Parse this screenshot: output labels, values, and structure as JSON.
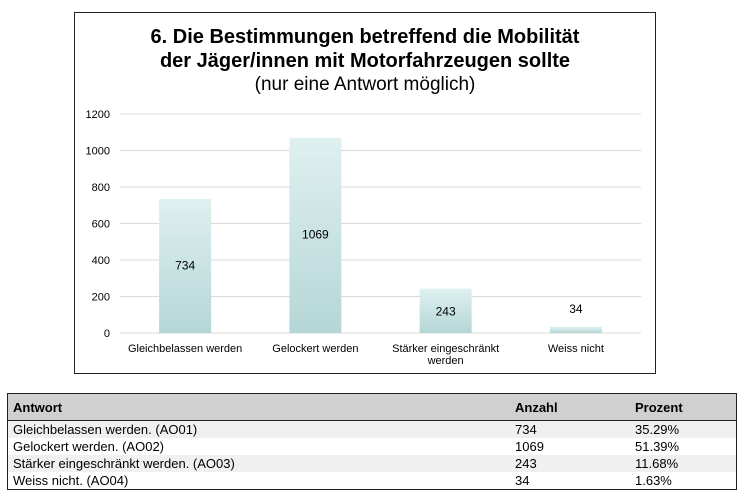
{
  "chart_data": {
    "type": "bar",
    "title_line1": "6. Die Bestimmungen betreffend die Mobilität",
    "title_line2": "der Jäger/innen mit Motorfahrzeugen sollte",
    "subtitle": "(nur eine Antwort möglich)",
    "categories": [
      "Gleichbelassen werden",
      "Gelockert werden",
      "Stärker eingeschränkt werden",
      "Weiss nicht"
    ],
    "category_lines": [
      [
        "Gleichbelassen werden"
      ],
      [
        "Gelockert werden"
      ],
      [
        "Stärker eingeschränkt",
        "werden"
      ],
      [
        "Weiss nicht"
      ]
    ],
    "values": [
      734,
      1069,
      243,
      34
    ],
    "ylim": [
      0,
      1200
    ],
    "yticks": [
      0,
      200,
      400,
      600,
      800,
      1000,
      1200
    ],
    "grid": true,
    "bar_color_top": "#dff0f0",
    "bar_color_bottom": "#b5d6d6",
    "grid_color": "#d9d9d9"
  },
  "table": {
    "headers": [
      "Antwort",
      "Anzahl",
      "Prozent"
    ],
    "rows": [
      [
        "Gleichbelassen werden. (AO01)",
        "734",
        "35.29%"
      ],
      [
        "Gelockert werden. (AO02)",
        "1069",
        "51.39%"
      ],
      [
        "Stärker eingeschränkt werden. (AO03)",
        "243",
        "11.68%"
      ],
      [
        "Weiss nicht. (AO04)",
        "34",
        "1.63%"
      ]
    ]
  }
}
